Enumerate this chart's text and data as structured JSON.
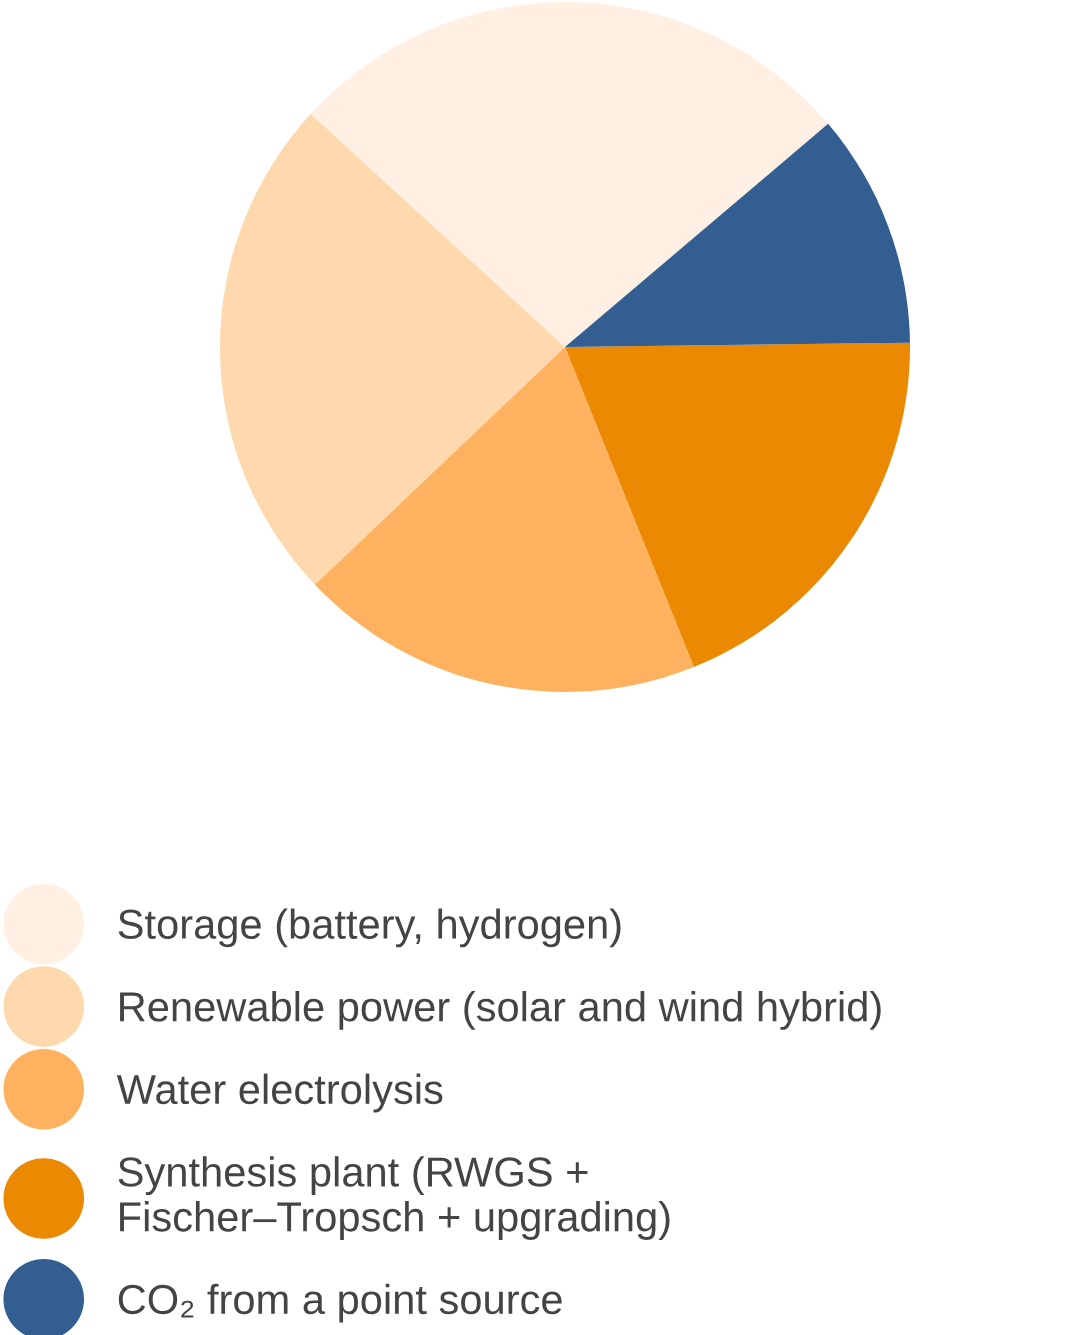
{
  "chart_data": {
    "type": "pie",
    "categories": [
      "Storage (battery, hydrogen)",
      "Renewable power (solar and wind hybrid)",
      "Water electrolysis",
      "Synthesis plant (RWGS +\nFischer–Tropsch + upgrading)",
      "CO₂ from a point source"
    ],
    "values": [
      27.0,
      23.9,
      19.0,
      19.1,
      11.0
    ],
    "colors": [
      "#fff0e3",
      "#fed9ae",
      "#feb25f",
      "#ec8902",
      "#325e91"
    ],
    "legend": "bottom"
  }
}
